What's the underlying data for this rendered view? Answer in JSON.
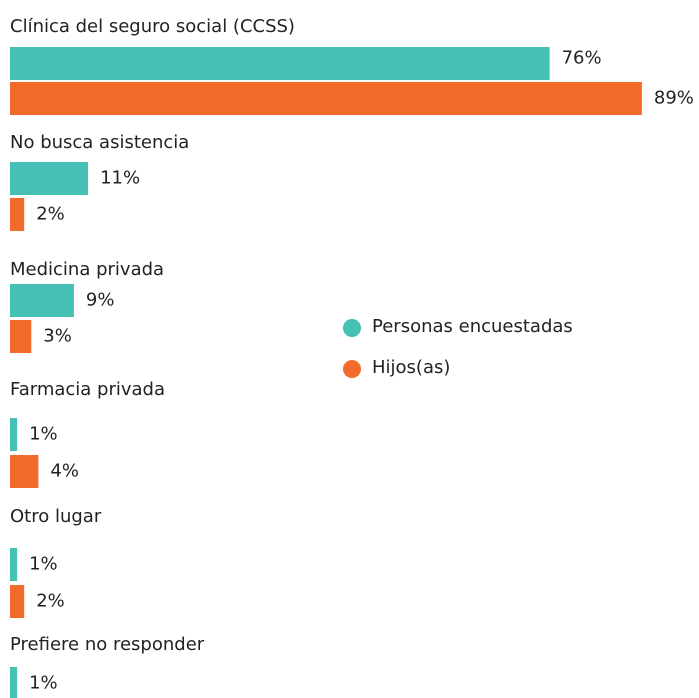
{
  "chart_data": {
    "type": "hbar",
    "categories": [
      "Clínica del seguro social (CCSS)",
      "No busca asistencia",
      "Medicina privada",
      "Farmacia privada",
      "Otro lugar",
      "Prefiere no responder"
    ],
    "series": [
      {
        "name": "Personas encuestadas",
        "color": "#46bfb4",
        "values": [
          76,
          11,
          9,
          1,
          1,
          1
        ],
        "value_labels": [
          "76%",
          "11%",
          "9%",
          "1%",
          "1%",
          "1%"
        ]
      },
      {
        "name": "Hijos(as)",
        "color": "#f26b2b",
        "values": [
          89,
          2,
          3,
          4,
          2,
          null
        ],
        "value_labels": [
          "89%",
          "2%",
          "3%",
          "4%",
          "2%",
          null
        ]
      }
    ]
  }
}
